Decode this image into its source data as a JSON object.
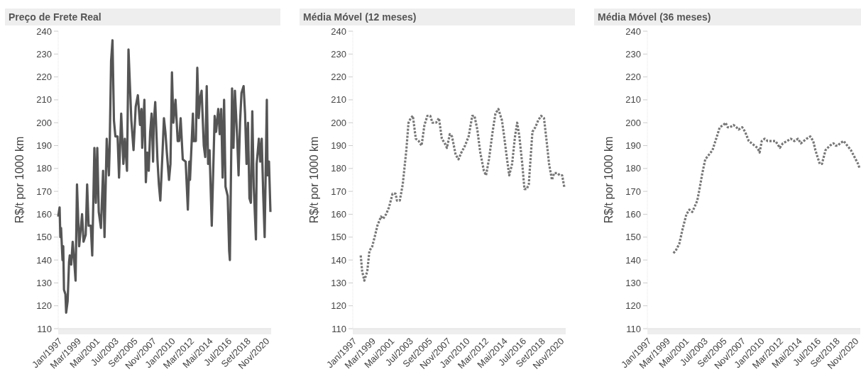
{
  "chart_data": [
    {
      "type": "line",
      "title": "Preço de Frete Real",
      "ylabel": "R$/t por 1000 km",
      "color": "#555555",
      "line_style": "solid",
      "xlim": [
        "1997-01",
        "2021-07"
      ],
      "ylim": [
        110,
        240
      ],
      "yticks": [
        110,
        120,
        130,
        140,
        150,
        160,
        170,
        180,
        190,
        200,
        210,
        220,
        230,
        240
      ],
      "xticks": [
        {
          "value": "1997-01",
          "label": "Jan/1997"
        },
        {
          "value": "1999-03",
          "label": "Mar/1999"
        },
        {
          "value": "2001-05",
          "label": "Mai/2001"
        },
        {
          "value": "2003-07",
          "label": "Jul/2003"
        },
        {
          "value": "2005-09",
          "label": "Set/2005"
        },
        {
          "value": "2007-11",
          "label": "Nov/2007"
        },
        {
          "value": "2010-01",
          "label": "Jan/2010"
        },
        {
          "value": "2012-03",
          "label": "Mar/2012"
        },
        {
          "value": "2014-05",
          "label": "Mai/2014"
        },
        {
          "value": "2016-07",
          "label": "Jul/2016"
        },
        {
          "value": "2018-09",
          "label": "Set/2018"
        },
        {
          "value": "2020-11",
          "label": "Nov/2020"
        }
      ],
      "x": [
        "1997-01",
        "1997-03",
        "1997-04",
        "1997-05",
        "1997-07",
        "1997-08",
        "1997-09",
        "1997-11",
        "1997-12",
        "1998-02",
        "1998-04",
        "1998-05",
        "1998-07",
        "1998-09",
        "1998-11",
        "1999-01",
        "1999-03",
        "1999-06",
        "1999-10",
        "1999-12",
        "2000-03",
        "2000-05",
        "2000-07",
        "2000-10",
        "2000-12",
        "2001-03",
        "2001-05",
        "2001-07",
        "2001-09",
        "2001-12",
        "2002-03",
        "2002-05",
        "2002-08",
        "2002-11",
        "2002-12",
        "2003-02",
        "2003-04",
        "2003-06",
        "2003-08",
        "2003-11",
        "2004-01",
        "2004-04",
        "2004-07",
        "2004-09",
        "2004-12",
        "2005-02",
        "2005-06",
        "2005-09",
        "2005-12",
        "2006-03",
        "2006-06",
        "2006-08",
        "2006-09",
        "2006-12",
        "2007-02",
        "2007-04",
        "2007-06",
        "2007-08",
        "2007-10",
        "2007-12",
        "2008-01",
        "2008-03",
        "2008-06",
        "2008-08",
        "2008-10",
        "2009-01",
        "2009-03",
        "2009-05",
        "2009-07",
        "2009-10",
        "2009-12",
        "2010-02",
        "2010-04",
        "2010-07",
        "2010-10",
        "2010-12",
        "2011-02",
        "2011-05",
        "2011-09",
        "2011-12",
        "2012-02",
        "2012-03",
        "2012-07",
        "2012-08",
        "2012-11",
        "2013-01",
        "2013-03",
        "2013-05",
        "2013-07",
        "2013-10",
        "2013-12",
        "2014-02",
        "2014-04",
        "2014-06",
        "2014-08",
        "2014-09",
        "2015-01",
        "2015-03",
        "2015-06",
        "2015-08",
        "2015-10",
        "2015-12",
        "2016-02",
        "2016-04",
        "2016-07",
        "2016-09",
        "2016-10",
        "2017-01",
        "2017-03",
        "2017-05",
        "2017-08",
        "2017-10",
        "2017-12",
        "2018-02",
        "2018-05",
        "2018-07",
        "2018-09",
        "2018-11",
        "2019-01",
        "2019-03",
        "2019-05",
        "2019-07",
        "2019-10",
        "2019-11",
        "2020-02",
        "2020-04",
        "2020-06",
        "2020-08",
        "2020-10",
        "2021-01",
        "2021-02",
        "2021-04",
        "2021-06"
      ],
      "values": [
        159,
        163,
        150,
        154,
        140,
        146,
        127,
        125,
        117,
        122,
        139,
        142,
        138,
        148,
        140,
        131,
        173,
        146,
        160,
        148,
        151,
        173,
        155,
        155,
        142,
        189,
        165,
        189,
        161,
        154,
        179,
        150,
        193,
        177,
        188,
        227,
        236,
        201,
        194,
        194,
        176,
        204,
        182,
        193,
        179,
        232,
        201,
        188,
        207,
        212,
        199,
        206,
        189,
        210,
        174,
        187,
        179,
        196,
        204,
        183,
        200,
        209,
        184,
        173,
        166,
        187,
        202,
        196,
        187,
        175,
        182,
        222,
        200,
        210,
        192,
        192,
        202,
        184,
        183,
        162,
        183,
        175,
        204,
        192,
        192,
        224,
        202,
        211,
        214,
        190,
        185,
        216,
        182,
        188,
        166,
        155,
        203,
        196,
        206,
        195,
        206,
        176,
        210,
        172,
        168,
        144,
        140,
        215,
        189,
        214,
        194,
        177,
        200,
        213,
        216,
        204,
        182,
        200,
        167,
        165,
        205,
        172,
        149,
        182,
        193,
        183,
        193,
        169,
        150,
        210,
        177,
        183,
        161
      ]
    },
    {
      "type": "line",
      "title": "Média Móvel (12 meses)",
      "ylabel": "R$/t por 1000 km",
      "color": "#777777",
      "line_style": "dotted",
      "xlim": [
        "1997-01",
        "2021-07"
      ],
      "ylim": [
        110,
        240
      ],
      "yticks": [
        110,
        120,
        130,
        140,
        150,
        160,
        170,
        180,
        190,
        200,
        210,
        220,
        230,
        240
      ],
      "xticks": [
        {
          "value": "1997-01",
          "label": "Jan/1997"
        },
        {
          "value": "1999-03",
          "label": "Mar/1999"
        },
        {
          "value": "2001-05",
          "label": "Mai/2001"
        },
        {
          "value": "2003-07",
          "label": "Jul/2003"
        },
        {
          "value": "2005-09",
          "label": "Set/2005"
        },
        {
          "value": "2007-11",
          "label": "Nov/2007"
        },
        {
          "value": "2010-01",
          "label": "Jan/2010"
        },
        {
          "value": "2012-03",
          "label": "Mar/2012"
        },
        {
          "value": "2014-05",
          "label": "Mai/2014"
        },
        {
          "value": "2016-07",
          "label": "Jul/2016"
        },
        {
          "value": "2018-09",
          "label": "Set/2018"
        },
        {
          "value": "2020-11",
          "label": "Nov/2020"
        }
      ],
      "x": [
        "1997-12",
        "1998-02",
        "1998-05",
        "1998-09",
        "1998-12",
        "1999-04",
        "1999-08",
        "1999-11",
        "2000-04",
        "2000-07",
        "2000-11",
        "2001-03",
        "2001-08",
        "2001-12",
        "2002-02",
        "2002-06",
        "2002-10",
        "2003-03",
        "2003-06",
        "2003-09",
        "2003-12",
        "2004-04",
        "2004-08",
        "2004-12",
        "2005-04",
        "2005-08",
        "2005-12",
        "2006-03",
        "2006-08",
        "2006-12",
        "2007-04",
        "2007-08",
        "2007-11",
        "2008-03",
        "2008-06",
        "2008-11",
        "2009-03",
        "2009-07",
        "2009-12",
        "2010-05",
        "2010-10",
        "2011-01",
        "2011-05",
        "2011-09",
        "2012-02",
        "2012-05",
        "2012-09",
        "2013-02",
        "2013-06",
        "2013-10",
        "2014-03",
        "2014-06",
        "2014-10",
        "2015-01",
        "2015-05",
        "2015-09",
        "2015-12",
        "2016-03",
        "2016-07",
        "2016-10",
        "2017-01",
        "2017-04",
        "2017-09",
        "2018-01",
        "2018-05",
        "2018-09",
        "2019-01",
        "2019-05",
        "2019-08",
        "2019-12",
        "2020-03",
        "2020-07",
        "2020-11",
        "2021-02",
        "2021-05"
      ],
      "values": [
        142,
        135,
        131,
        135,
        144,
        146,
        151,
        155,
        159,
        158,
        160,
        163,
        169,
        169,
        166,
        166,
        173,
        188,
        200,
        202,
        203,
        193,
        192,
        190,
        199,
        203,
        203,
        200,
        200,
        202,
        193,
        191,
        189,
        195,
        194,
        186,
        184,
        187,
        190,
        194,
        203,
        203,
        197,
        187,
        179,
        177,
        184,
        196,
        204,
        206,
        201,
        194,
        184,
        177,
        182,
        194,
        200,
        194,
        182,
        171,
        171,
        173,
        196,
        198,
        201,
        203,
        202,
        191,
        182,
        175,
        178,
        178,
        177,
        177,
        172
      ]
    },
    {
      "type": "line",
      "title": "Média Móvel (36 meses)",
      "ylabel": "R$/t por 1000 km",
      "color": "#777777",
      "line_style": "dotted",
      "xlim": [
        "1997-01",
        "2021-07"
      ],
      "ylim": [
        110,
        240
      ],
      "yticks": [
        110,
        120,
        130,
        140,
        150,
        160,
        170,
        180,
        190,
        200,
        210,
        220,
        230,
        240
      ],
      "xticks": [
        {
          "value": "1997-01",
          "label": "Jan/1997"
        },
        {
          "value": "1999-03",
          "label": "Mar/1999"
        },
        {
          "value": "2001-05",
          "label": "Mai/2001"
        },
        {
          "value": "2003-07",
          "label": "Jul/2003"
        },
        {
          "value": "2005-09",
          "label": "Set/2005"
        },
        {
          "value": "2007-11",
          "label": "Nov/2007"
        },
        {
          "value": "2010-01",
          "label": "Jan/2010"
        },
        {
          "value": "2012-03",
          "label": "Mar/2012"
        },
        {
          "value": "2014-05",
          "label": "Mai/2014"
        },
        {
          "value": "2016-07",
          "label": "Jul/2016"
        },
        {
          "value": "2018-09",
          "label": "Set/2018"
        },
        {
          "value": "2020-11",
          "label": "Nov/2020"
        }
      ],
      "x": [
        "2000-01",
        "2000-04",
        "2000-09",
        "2001-02",
        "2001-07",
        "2001-11",
        "2002-03",
        "2002-06",
        "2002-10",
        "2003-01",
        "2003-05",
        "2003-09",
        "2004-02",
        "2004-07",
        "2004-10",
        "2005-01",
        "2005-05",
        "2005-10",
        "2006-01",
        "2006-04",
        "2006-07",
        "2006-12",
        "2007-04",
        "2007-07",
        "2007-12",
        "2008-04",
        "2008-09",
        "2009-01",
        "2009-05",
        "2009-09",
        "2009-12",
        "2010-03",
        "2010-07",
        "2010-11",
        "2011-02",
        "2011-06",
        "2011-10",
        "2012-04",
        "2012-08",
        "2013-02",
        "2013-07",
        "2013-12",
        "2014-05",
        "2014-09",
        "2015-01",
        "2015-05",
        "2015-10",
        "2016-02",
        "2016-05",
        "2016-08",
        "2016-11",
        "2017-02",
        "2017-07",
        "2018-01",
        "2018-06",
        "2018-09",
        "2018-12",
        "2019-03",
        "2019-08",
        "2020-01",
        "2020-06",
        "2020-11",
        "2021-04",
        "2021-06"
      ],
      "values": [
        143,
        144,
        147,
        154,
        160,
        162,
        161,
        163,
        166,
        171,
        178,
        184,
        186,
        188,
        191,
        194,
        198,
        199,
        200,
        198,
        198,
        199,
        198,
        197,
        198,
        196,
        192,
        191,
        190,
        189,
        187,
        192,
        193,
        192,
        192,
        192,
        192,
        189,
        191,
        192,
        193,
        192,
        193,
        191,
        192,
        193,
        194,
        192,
        188,
        185,
        182,
        182,
        188,
        190,
        191,
        190,
        190,
        191,
        192,
        190,
        188,
        185,
        182,
        180
      ]
    }
  ]
}
